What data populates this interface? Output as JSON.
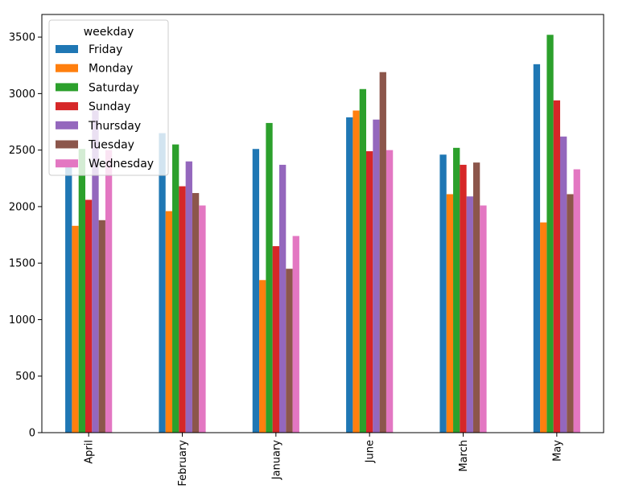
{
  "chart_data": {
    "type": "bar",
    "title": "",
    "xlabel": "",
    "ylabel": "",
    "categories": [
      "April",
      "February",
      "January",
      "June",
      "March",
      "May"
    ],
    "ylim": [
      0,
      3700
    ],
    "yticks": [
      0,
      500,
      1000,
      1500,
      2000,
      2500,
      3000,
      3500
    ],
    "grid": false,
    "legend": {
      "title": "weekday",
      "placement": "top-left"
    },
    "series": [
      {
        "name": "Friday",
        "color": "#1f77b4",
        "values": [
          2380,
          2650,
          2510,
          2790,
          2460,
          3260
        ]
      },
      {
        "name": "Monday",
        "color": "#ff7f0e",
        "values": [
          1830,
          1960,
          1350,
          2850,
          2110,
          1860
        ]
      },
      {
        "name": "Saturday",
        "color": "#2ca02c",
        "values": [
          2510,
          2550,
          2740,
          3040,
          2520,
          3520
        ]
      },
      {
        "name": "Sunday",
        "color": "#d62728",
        "values": [
          2060,
          2180,
          1650,
          2490,
          2370,
          2940
        ]
      },
      {
        "name": "Thursday",
        "color": "#9467bd",
        "values": [
          2850,
          2400,
          2370,
          2770,
          2090,
          2620
        ]
      },
      {
        "name": "Tuesday",
        "color": "#8c564b",
        "values": [
          1880,
          2120,
          1450,
          3190,
          2390,
          2110
        ]
      },
      {
        "name": "Wednesday",
        "color": "#e377c2",
        "values": [
          2500,
          2010,
          1740,
          2500,
          2010,
          2330
        ]
      }
    ]
  }
}
